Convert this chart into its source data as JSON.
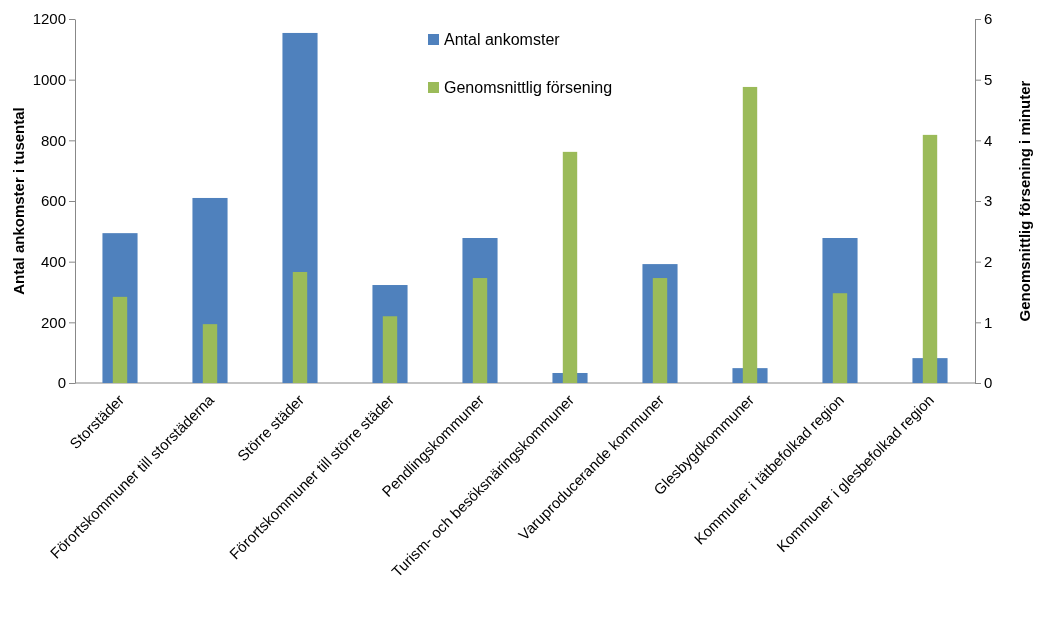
{
  "chart_data": {
    "type": "bar",
    "ylabel": "Antal ankomster i tusental",
    "y2label": "Genomsnittlig försening i minuter",
    "categories": [
      "Storstäder",
      "Förortskommuner till storstäderna",
      "Större städer",
      "Förortskommuner till större städer",
      "Pendlingskommuner",
      "Turism- och besöksnäringskommuner",
      "Varuproducerande kommuner",
      "Glesbygdkommuner",
      "Kommuner i tätbefolkad region",
      "Kommuner i glesbefolkad region"
    ],
    "series": [
      {
        "name": "Antal ankomster",
        "color": "#4f81bd",
        "values": [
          494,
          610,
          1154,
          323,
          478,
          33,
          392,
          49,
          478,
          82
        ]
      },
      {
        "name": "Genomsnittlig försening",
        "color": "#9bbb59",
        "axis": "y2",
        "values": [
          1.42,
          0.97,
          1.83,
          1.1,
          1.73,
          3.81,
          1.73,
          4.88,
          1.48,
          4.09
        ]
      }
    ],
    "ylim": [
      0,
      1200
    ],
    "yticks": [
      0,
      200,
      400,
      600,
      800,
      1000,
      1200
    ],
    "y2lim": [
      0,
      6
    ],
    "y2ticks": [
      0,
      1,
      2,
      3,
      4,
      5,
      6
    ],
    "grid": false,
    "legend": "top"
  }
}
